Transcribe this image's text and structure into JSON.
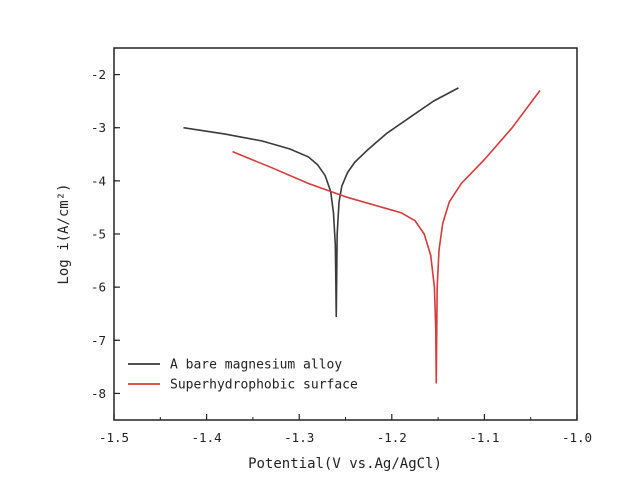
{
  "chart_data": {
    "type": "line",
    "xlabel": "Potential(V vs.Ag/AgCl)",
    "ylabel": "Log i(A/cm²)",
    "xlim": [
      -1.5,
      -1.0
    ],
    "ylim": [
      -8.5,
      -1.5
    ],
    "xticks": [
      -1.5,
      -1.4,
      -1.3,
      -1.2,
      -1.1,
      -1.0
    ],
    "xtick_labels": [
      "-1.5",
      "-1.4",
      "-1.3",
      "-1.2",
      "-1.1",
      "-1.0"
    ],
    "yticks": [
      -8,
      -7,
      -6,
      -5,
      -4,
      -3,
      -2
    ],
    "ytick_labels": [
      "-8",
      "-7",
      "-6",
      "-5",
      "-4",
      "-3",
      "-2"
    ],
    "grid": false,
    "legend_position": "bottom-left",
    "series": [
      {
        "name": "A bare magnesium alloy",
        "color": "#3a3a3a",
        "x": [
          -1.425,
          -1.38,
          -1.34,
          -1.31,
          -1.29,
          -1.28,
          -1.272,
          -1.266,
          -1.263,
          -1.261,
          -1.2605,
          -1.26,
          -1.2595,
          -1.259,
          -1.257,
          -1.254,
          -1.248,
          -1.24,
          -1.225,
          -1.205,
          -1.18,
          -1.155,
          -1.128
        ],
        "y": [
          -3.0,
          -3.12,
          -3.25,
          -3.4,
          -3.55,
          -3.7,
          -3.9,
          -4.2,
          -4.6,
          -5.2,
          -5.8,
          -6.55,
          -5.8,
          -5.0,
          -4.4,
          -4.1,
          -3.85,
          -3.65,
          -3.4,
          -3.1,
          -2.8,
          -2.5,
          -2.25
        ]
      },
      {
        "name": "Superhydrophobic surface",
        "color": "#d63a3a",
        "x": [
          -1.372,
          -1.33,
          -1.29,
          -1.25,
          -1.21,
          -1.19,
          -1.175,
          -1.165,
          -1.158,
          -1.154,
          -1.1525,
          -1.152,
          -1.1515,
          -1.151,
          -1.149,
          -1.145,
          -1.138,
          -1.125,
          -1.1,
          -1.07,
          -1.04
        ],
        "y": [
          -3.45,
          -3.75,
          -4.05,
          -4.3,
          -4.5,
          -4.6,
          -4.75,
          -5.0,
          -5.4,
          -6.0,
          -6.8,
          -7.8,
          -6.9,
          -6.0,
          -5.3,
          -4.8,
          -4.4,
          -4.05,
          -3.6,
          -3.0,
          -2.3
        ]
      }
    ]
  }
}
